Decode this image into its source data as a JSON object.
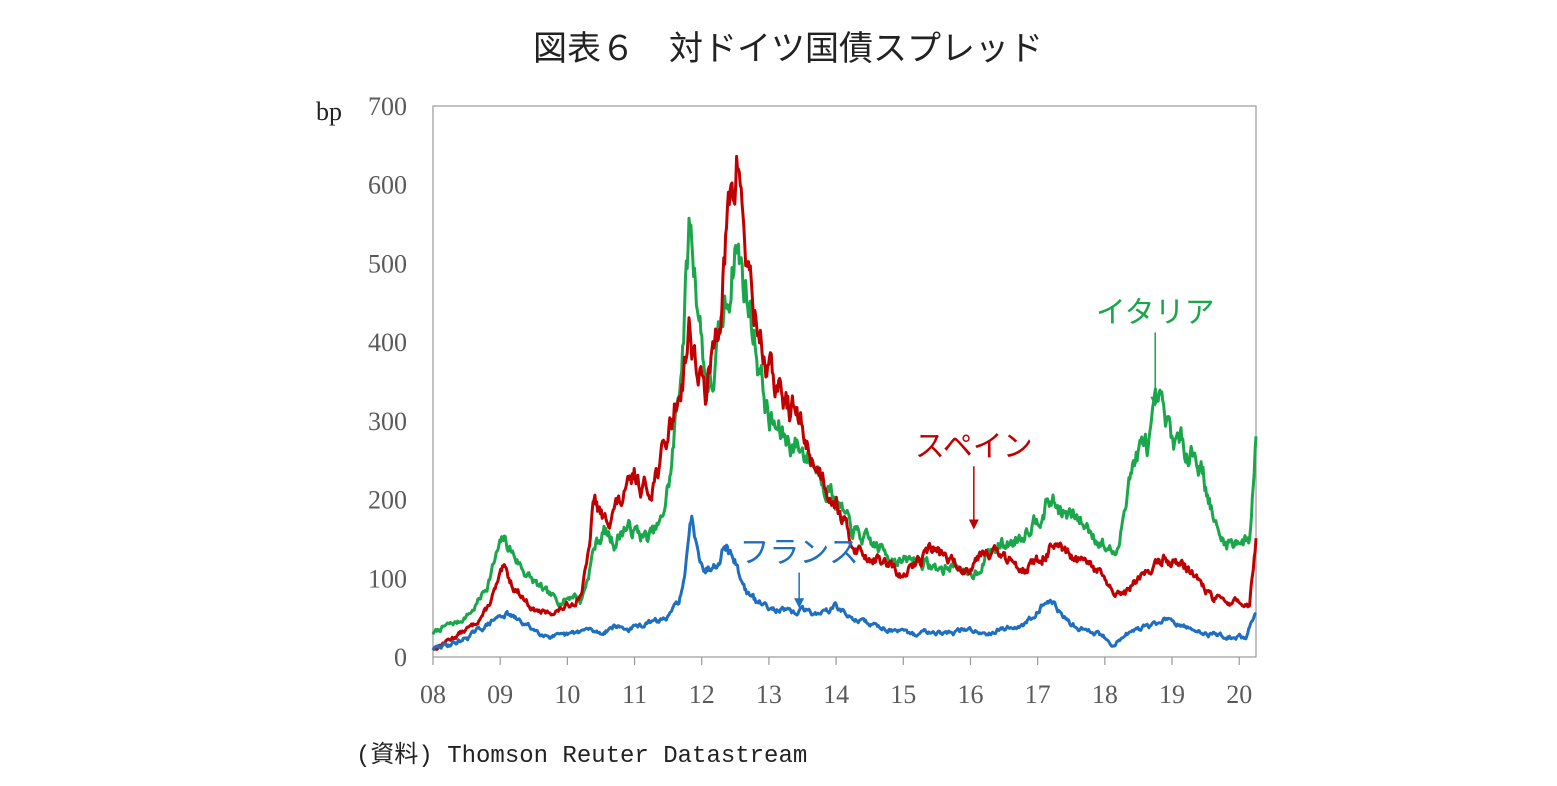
{
  "chart_data": {
    "type": "line",
    "title": "図表６　対ドイツ国債スプレッド",
    "ylabel": "bp",
    "xlabel": "",
    "ylim": [
      0,
      700
    ],
    "xlim": [
      2008.0,
      2020.25
    ],
    "yticks": [
      "0",
      "100",
      "200",
      "300",
      "400",
      "500",
      "600",
      "700"
    ],
    "xticks": [
      "08",
      "09",
      "10",
      "11",
      "12",
      "13",
      "14",
      "15",
      "16",
      "17",
      "18",
      "19",
      "20"
    ],
    "grid": false,
    "legend": "none",
    "source": "(資料) Thomson Reuter Datastream",
    "series": [
      {
        "name": "イタリア",
        "color": "#1aa64a",
        "points": [
          [
            2008.0,
            30
          ],
          [
            2008.2,
            40
          ],
          [
            2008.4,
            45
          ],
          [
            2008.6,
            60
          ],
          [
            2008.8,
            90
          ],
          [
            2008.95,
            130
          ],
          [
            2009.05,
            150
          ],
          [
            2009.2,
            130
          ],
          [
            2009.35,
            110
          ],
          [
            2009.5,
            95
          ],
          [
            2009.7,
            80
          ],
          [
            2009.9,
            70
          ],
          [
            2010.1,
            80
          ],
          [
            2010.2,
            70
          ],
          [
            2010.3,
            100
          ],
          [
            2010.4,
            140
          ],
          [
            2010.55,
            160
          ],
          [
            2010.7,
            145
          ],
          [
            2010.85,
            165
          ],
          [
            2011.0,
            160
          ],
          [
            2011.2,
            150
          ],
          [
            2011.4,
            170
          ],
          [
            2011.55,
            240
          ],
          [
            2011.7,
            380
          ],
          [
            2011.82,
            550
          ],
          [
            2011.95,
            450
          ],
          [
            2012.05,
            360
          ],
          [
            2012.15,
            340
          ],
          [
            2012.3,
            420
          ],
          [
            2012.4,
            460
          ],
          [
            2012.5,
            530
          ],
          [
            2012.65,
            470
          ],
          [
            2012.8,
            400
          ],
          [
            2013.0,
            300
          ],
          [
            2013.2,
            280
          ],
          [
            2013.4,
            270
          ],
          [
            2013.6,
            255
          ],
          [
            2013.8,
            230
          ],
          [
            2014.0,
            200
          ],
          [
            2014.2,
            165
          ],
          [
            2014.4,
            150
          ],
          [
            2014.6,
            140
          ],
          [
            2014.8,
            130
          ],
          [
            2015.0,
            120
          ],
          [
            2015.2,
            125
          ],
          [
            2015.4,
            115
          ],
          [
            2015.6,
            110
          ],
          [
            2015.8,
            120
          ],
          [
            2015.95,
            100
          ],
          [
            2016.1,
            110
          ],
          [
            2016.25,
            130
          ],
          [
            2016.4,
            140
          ],
          [
            2016.6,
            145
          ],
          [
            2016.8,
            160
          ],
          [
            2017.0,
            180
          ],
          [
            2017.2,
            200
          ],
          [
            2017.4,
            180
          ],
          [
            2017.6,
            175
          ],
          [
            2017.8,
            160
          ],
          [
            2018.0,
            140
          ],
          [
            2018.2,
            130
          ],
          [
            2018.35,
            230
          ],
          [
            2018.5,
            260
          ],
          [
            2018.65,
            270
          ],
          [
            2018.8,
            320
          ],
          [
            2018.95,
            285
          ],
          [
            2019.1,
            270
          ],
          [
            2019.3,
            265
          ],
          [
            2019.45,
            240
          ],
          [
            2019.55,
            200
          ],
          [
            2019.7,
            150
          ],
          [
            2019.85,
            145
          ],
          [
            2020.0,
            150
          ],
          [
            2020.15,
            145
          ],
          [
            2020.25,
            280
          ]
        ]
      },
      {
        "name": "スペイン",
        "color": "#c00000",
        "points": [
          [
            2008.0,
            10
          ],
          [
            2008.2,
            20
          ],
          [
            2008.4,
            30
          ],
          [
            2008.6,
            40
          ],
          [
            2008.8,
            60
          ],
          [
            2008.95,
            90
          ],
          [
            2009.05,
            110
          ],
          [
            2009.2,
            90
          ],
          [
            2009.35,
            75
          ],
          [
            2009.5,
            60
          ],
          [
            2009.7,
            55
          ],
          [
            2009.9,
            60
          ],
          [
            2010.1,
            70
          ],
          [
            2010.2,
            80
          ],
          [
            2010.3,
            120
          ],
          [
            2010.4,
            200
          ],
          [
            2010.55,
            170
          ],
          [
            2010.7,
            190
          ],
          [
            2010.85,
            200
          ],
          [
            2011.0,
            230
          ],
          [
            2011.2,
            210
          ],
          [
            2011.4,
            250
          ],
          [
            2011.55,
            300
          ],
          [
            2011.7,
            350
          ],
          [
            2011.82,
            420
          ],
          [
            2011.95,
            360
          ],
          [
            2012.05,
            330
          ],
          [
            2012.15,
            370
          ],
          [
            2012.3,
            470
          ],
          [
            2012.4,
            560
          ],
          [
            2012.5,
            600
          ],
          [
            2012.55,
            635
          ],
          [
            2012.65,
            520
          ],
          [
            2012.8,
            430
          ],
          [
            2013.0,
            360
          ],
          [
            2013.2,
            330
          ],
          [
            2013.4,
            310
          ],
          [
            2013.6,
            260
          ],
          [
            2013.8,
            230
          ],
          [
            2014.0,
            200
          ],
          [
            2014.2,
            150
          ],
          [
            2014.4,
            130
          ],
          [
            2014.6,
            125
          ],
          [
            2014.8,
            115
          ],
          [
            2015.0,
            100
          ],
          [
            2015.2,
            120
          ],
          [
            2015.4,
            140
          ],
          [
            2015.6,
            130
          ],
          [
            2015.8,
            115
          ],
          [
            2015.95,
            110
          ],
          [
            2016.1,
            130
          ],
          [
            2016.25,
            140
          ],
          [
            2016.4,
            130
          ],
          [
            2016.6,
            120
          ],
          [
            2016.8,
            115
          ],
          [
            2017.0,
            120
          ],
          [
            2017.2,
            140
          ],
          [
            2017.4,
            130
          ],
          [
            2017.6,
            120
          ],
          [
            2017.8,
            115
          ],
          [
            2018.0,
            100
          ],
          [
            2018.15,
            75
          ],
          [
            2018.3,
            80
          ],
          [
            2018.5,
            100
          ],
          [
            2018.7,
            115
          ],
          [
            2018.9,
            125
          ],
          [
            2019.1,
            120
          ],
          [
            2019.3,
            110
          ],
          [
            2019.45,
            90
          ],
          [
            2019.6,
            75
          ],
          [
            2019.8,
            70
          ],
          [
            2020.0,
            70
          ],
          [
            2020.15,
            65
          ],
          [
            2020.25,
            150
          ]
        ]
      },
      {
        "name": "フランス",
        "color": "#1f6fc0",
        "points": [
          [
            2008.0,
            10
          ],
          [
            2008.2,
            15
          ],
          [
            2008.4,
            20
          ],
          [
            2008.6,
            30
          ],
          [
            2008.8,
            40
          ],
          [
            2008.95,
            50
          ],
          [
            2009.1,
            55
          ],
          [
            2009.3,
            45
          ],
          [
            2009.5,
            35
          ],
          [
            2009.7,
            28
          ],
          [
            2009.9,
            25
          ],
          [
            2010.1,
            30
          ],
          [
            2010.3,
            35
          ],
          [
            2010.5,
            30
          ],
          [
            2010.7,
            40
          ],
          [
            2010.9,
            35
          ],
          [
            2011.1,
            40
          ],
          [
            2011.3,
            45
          ],
          [
            2011.5,
            50
          ],
          [
            2011.65,
            70
          ],
          [
            2011.75,
            100
          ],
          [
            2011.85,
            180
          ],
          [
            2011.95,
            140
          ],
          [
            2012.05,
            110
          ],
          [
            2012.2,
            120
          ],
          [
            2012.35,
            145
          ],
          [
            2012.5,
            120
          ],
          [
            2012.65,
            85
          ],
          [
            2012.8,
            70
          ],
          [
            2013.0,
            65
          ],
          [
            2013.2,
            60
          ],
          [
            2013.35,
            55
          ],
          [
            2013.5,
            60
          ],
          [
            2013.7,
            55
          ],
          [
            2013.9,
            60
          ],
          [
            2014.0,
            65
          ],
          [
            2014.2,
            50
          ],
          [
            2014.4,
            45
          ],
          [
            2014.6,
            40
          ],
          [
            2014.8,
            35
          ],
          [
            2015.0,
            30
          ],
          [
            2015.2,
            28
          ],
          [
            2015.4,
            35
          ],
          [
            2015.6,
            30
          ],
          [
            2015.8,
            32
          ],
          [
            2016.0,
            35
          ],
          [
            2016.2,
            30
          ],
          [
            2016.4,
            35
          ],
          [
            2016.6,
            38
          ],
          [
            2016.8,
            40
          ],
          [
            2017.0,
            60
          ],
          [
            2017.15,
            75
          ],
          [
            2017.3,
            60
          ],
          [
            2017.5,
            40
          ],
          [
            2017.7,
            35
          ],
          [
            2017.9,
            30
          ],
          [
            2018.0,
            25
          ],
          [
            2018.15,
            15
          ],
          [
            2018.3,
            30
          ],
          [
            2018.5,
            35
          ],
          [
            2018.7,
            40
          ],
          [
            2018.9,
            48
          ],
          [
            2019.1,
            40
          ],
          [
            2019.3,
            35
          ],
          [
            2019.5,
            30
          ],
          [
            2019.7,
            28
          ],
          [
            2019.9,
            25
          ],
          [
            2020.1,
            25
          ],
          [
            2020.25,
            60
          ]
        ]
      }
    ],
    "annotations": [
      {
        "text": "イタリア",
        "color": "#1aa64a",
        "x": 2018.75,
        "y": 425,
        "arrow_to": [
          2018.75,
          318
        ]
      },
      {
        "text": "スペイン",
        "color": "#c00000",
        "x": 2016.05,
        "y": 255,
        "arrow_to": [
          2016.05,
          162
        ]
      },
      {
        "text": "フランス",
        "color": "#1f6fc0",
        "x": 2013.45,
        "y": 120,
        "arrow_to": [
          2013.45,
          62
        ]
      }
    ]
  }
}
